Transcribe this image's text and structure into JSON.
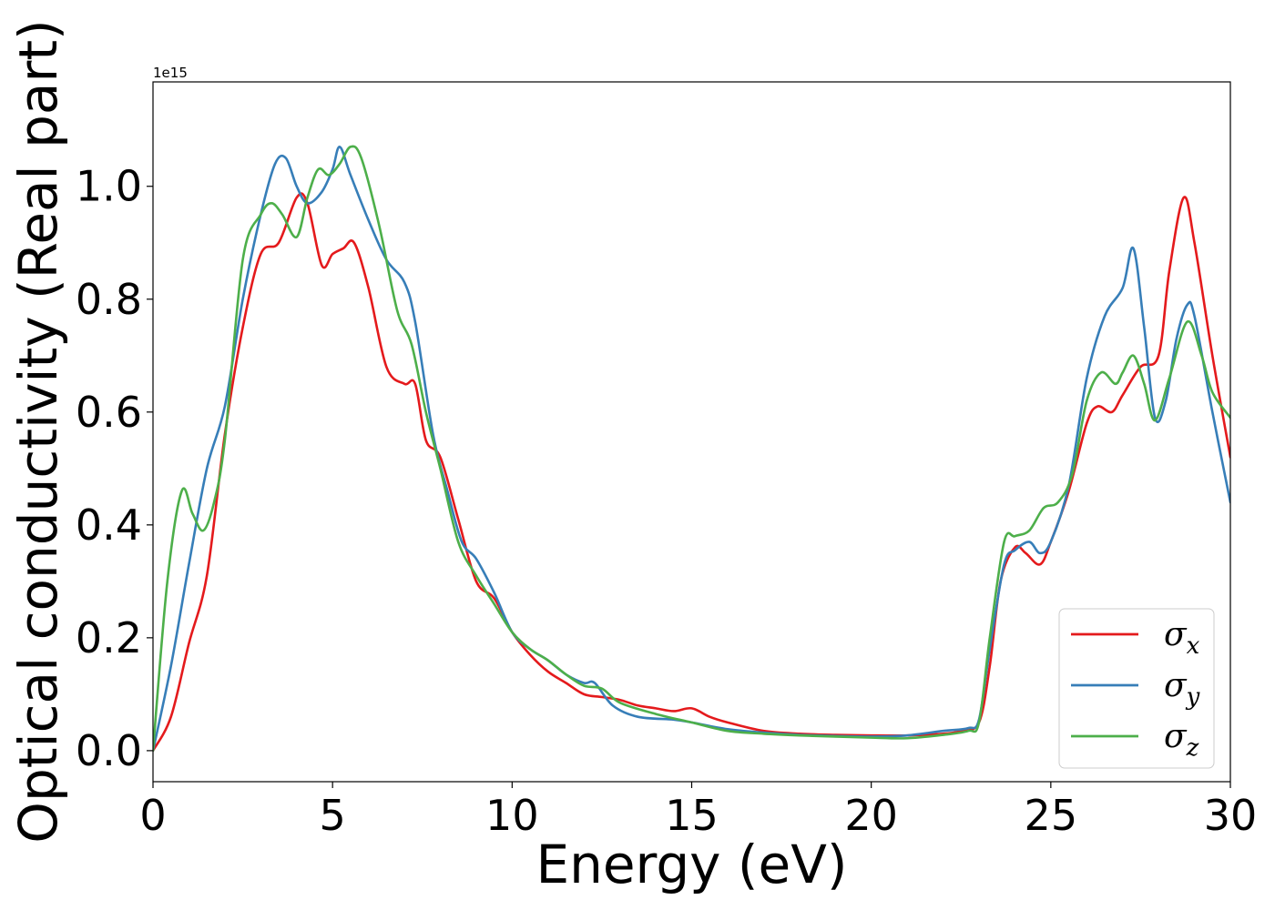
{
  "chart_data": {
    "type": "line",
    "xlabel": "Energy (eV)",
    "ylabel": "Optical conductivity (Real part)",
    "y_offset_text": "1e15",
    "xlim": [
      0,
      30
    ],
    "ylim": [
      -0.055,
      1.185
    ],
    "x_ticks": [
      0,
      5,
      10,
      15,
      20,
      25,
      30
    ],
    "x_tick_labels": [
      "0",
      "5",
      "10",
      "15",
      "20",
      "25",
      "30"
    ],
    "y_ticks": [
      0.0,
      0.2,
      0.4,
      0.6,
      0.8,
      1.0
    ],
    "y_tick_labels": [
      "0.0",
      "0.2",
      "0.4",
      "0.6",
      "0.8",
      "1.0"
    ],
    "grid": false,
    "legend": "lower-right",
    "series": [
      {
        "name": "σx",
        "symbol": "σ",
        "subscript": "x",
        "color": "#e41a1c",
        "points": [
          [
            0.0,
            0.0
          ],
          [
            0.5,
            0.06
          ],
          [
            1.0,
            0.19
          ],
          [
            1.5,
            0.31
          ],
          [
            2.0,
            0.56
          ],
          [
            2.5,
            0.75
          ],
          [
            3.0,
            0.88
          ],
          [
            3.5,
            0.9
          ],
          [
            4.0,
            0.98
          ],
          [
            4.3,
            0.97
          ],
          [
            4.7,
            0.86
          ],
          [
            5.0,
            0.88
          ],
          [
            5.3,
            0.89
          ],
          [
            5.6,
            0.9
          ],
          [
            6.0,
            0.82
          ],
          [
            6.5,
            0.68
          ],
          [
            7.0,
            0.65
          ],
          [
            7.3,
            0.65
          ],
          [
            7.6,
            0.55
          ],
          [
            8.0,
            0.52
          ],
          [
            8.5,
            0.41
          ],
          [
            9.0,
            0.3
          ],
          [
            9.5,
            0.27
          ],
          [
            10.0,
            0.21
          ],
          [
            10.5,
            0.17
          ],
          [
            11.0,
            0.14
          ],
          [
            11.5,
            0.12
          ],
          [
            12.0,
            0.1
          ],
          [
            12.5,
            0.095
          ],
          [
            13.0,
            0.09
          ],
          [
            13.5,
            0.08
          ],
          [
            14.0,
            0.075
          ],
          [
            14.5,
            0.07
          ],
          [
            15.0,
            0.075
          ],
          [
            15.5,
            0.06
          ],
          [
            16.0,
            0.05
          ],
          [
            17.0,
            0.035
          ],
          [
            18.0,
            0.03
          ],
          [
            19.0,
            0.028
          ],
          [
            20.0,
            0.027
          ],
          [
            21.0,
            0.027
          ],
          [
            22.0,
            0.03
          ],
          [
            22.5,
            0.035
          ],
          [
            23.0,
            0.05
          ],
          [
            23.3,
            0.15
          ],
          [
            23.6,
            0.3
          ],
          [
            24.0,
            0.36
          ],
          [
            24.3,
            0.35
          ],
          [
            24.7,
            0.33
          ],
          [
            25.0,
            0.37
          ],
          [
            25.5,
            0.46
          ],
          [
            26.0,
            0.58
          ],
          [
            26.3,
            0.61
          ],
          [
            26.7,
            0.6
          ],
          [
            27.0,
            0.63
          ],
          [
            27.5,
            0.68
          ],
          [
            28.0,
            0.7
          ],
          [
            28.3,
            0.85
          ],
          [
            28.7,
            0.98
          ],
          [
            29.0,
            0.9
          ],
          [
            29.5,
            0.7
          ],
          [
            30.0,
            0.52
          ]
        ]
      },
      {
        "name": "σy",
        "symbol": "σ",
        "subscript": "y",
        "color": "#377eb8",
        "points": [
          [
            0.0,
            0.0
          ],
          [
            0.5,
            0.15
          ],
          [
            1.0,
            0.33
          ],
          [
            1.5,
            0.5
          ],
          [
            2.0,
            0.61
          ],
          [
            2.5,
            0.8
          ],
          [
            3.0,
            0.95
          ],
          [
            3.4,
            1.04
          ],
          [
            3.7,
            1.05
          ],
          [
            4.0,
            1.0
          ],
          [
            4.3,
            0.97
          ],
          [
            4.7,
            0.99
          ],
          [
            5.0,
            1.03
          ],
          [
            5.2,
            1.07
          ],
          [
            5.5,
            1.02
          ],
          [
            6.0,
            0.94
          ],
          [
            6.5,
            0.87
          ],
          [
            7.0,
            0.83
          ],
          [
            7.3,
            0.76
          ],
          [
            7.8,
            0.56
          ],
          [
            8.2,
            0.46
          ],
          [
            8.6,
            0.37
          ],
          [
            9.0,
            0.34
          ],
          [
            9.5,
            0.28
          ],
          [
            10.0,
            0.21
          ],
          [
            10.5,
            0.18
          ],
          [
            11.0,
            0.16
          ],
          [
            11.5,
            0.135
          ],
          [
            12.0,
            0.12
          ],
          [
            12.3,
            0.12
          ],
          [
            12.8,
            0.08
          ],
          [
            13.5,
            0.06
          ],
          [
            14.5,
            0.055
          ],
          [
            15.0,
            0.05
          ],
          [
            16.0,
            0.038
          ],
          [
            17.0,
            0.032
          ],
          [
            18.0,
            0.028
          ],
          [
            19.0,
            0.026
          ],
          [
            20.0,
            0.025
          ],
          [
            21.0,
            0.027
          ],
          [
            22.0,
            0.035
          ],
          [
            22.7,
            0.04
          ],
          [
            23.0,
            0.055
          ],
          [
            23.3,
            0.18
          ],
          [
            23.7,
            0.33
          ],
          [
            24.0,
            0.355
          ],
          [
            24.4,
            0.37
          ],
          [
            24.7,
            0.35
          ],
          [
            25.0,
            0.37
          ],
          [
            25.5,
            0.47
          ],
          [
            26.0,
            0.66
          ],
          [
            26.5,
            0.77
          ],
          [
            27.0,
            0.82
          ],
          [
            27.3,
            0.89
          ],
          [
            27.6,
            0.75
          ],
          [
            27.9,
            0.59
          ],
          [
            28.2,
            0.62
          ],
          [
            28.5,
            0.73
          ],
          [
            28.8,
            0.79
          ],
          [
            29.0,
            0.77
          ],
          [
            29.5,
            0.6
          ],
          [
            30.0,
            0.44
          ]
        ]
      },
      {
        "name": "σz",
        "symbol": "σ",
        "subscript": "z",
        "color": "#4daf4a",
        "points": [
          [
            0.0,
            0.0
          ],
          [
            0.4,
            0.3
          ],
          [
            0.8,
            0.46
          ],
          [
            1.1,
            0.42
          ],
          [
            1.4,
            0.39
          ],
          [
            1.7,
            0.44
          ],
          [
            2.0,
            0.55
          ],
          [
            2.5,
            0.87
          ],
          [
            3.0,
            0.95
          ],
          [
            3.3,
            0.97
          ],
          [
            3.6,
            0.95
          ],
          [
            4.0,
            0.91
          ],
          [
            4.3,
            0.98
          ],
          [
            4.6,
            1.03
          ],
          [
            4.9,
            1.02
          ],
          [
            5.2,
            1.04
          ],
          [
            5.5,
            1.07
          ],
          [
            5.8,
            1.05
          ],
          [
            6.3,
            0.93
          ],
          [
            6.8,
            0.78
          ],
          [
            7.2,
            0.72
          ],
          [
            7.6,
            0.6
          ],
          [
            8.0,
            0.5
          ],
          [
            8.5,
            0.37
          ],
          [
            9.0,
            0.31
          ],
          [
            9.5,
            0.26
          ],
          [
            10.0,
            0.21
          ],
          [
            10.5,
            0.18
          ],
          [
            11.0,
            0.16
          ],
          [
            11.5,
            0.135
          ],
          [
            12.0,
            0.115
          ],
          [
            12.5,
            0.11
          ],
          [
            13.0,
            0.085
          ],
          [
            14.0,
            0.065
          ],
          [
            15.0,
            0.05
          ],
          [
            16.0,
            0.035
          ],
          [
            17.0,
            0.03
          ],
          [
            18.0,
            0.027
          ],
          [
            19.0,
            0.025
          ],
          [
            20.0,
            0.023
          ],
          [
            21.0,
            0.022
          ],
          [
            22.0,
            0.028
          ],
          [
            22.7,
            0.035
          ],
          [
            23.0,
            0.05
          ],
          [
            23.3,
            0.2
          ],
          [
            23.7,
            0.37
          ],
          [
            24.0,
            0.38
          ],
          [
            24.4,
            0.39
          ],
          [
            24.8,
            0.43
          ],
          [
            25.2,
            0.44
          ],
          [
            25.6,
            0.49
          ],
          [
            26.0,
            0.62
          ],
          [
            26.4,
            0.67
          ],
          [
            26.8,
            0.65
          ],
          [
            27.0,
            0.67
          ],
          [
            27.3,
            0.7
          ],
          [
            27.6,
            0.65
          ],
          [
            27.9,
            0.585
          ],
          [
            28.3,
            0.66
          ],
          [
            28.8,
            0.76
          ],
          [
            29.2,
            0.7
          ],
          [
            29.5,
            0.635
          ],
          [
            30.0,
            0.59
          ]
        ]
      }
    ]
  }
}
